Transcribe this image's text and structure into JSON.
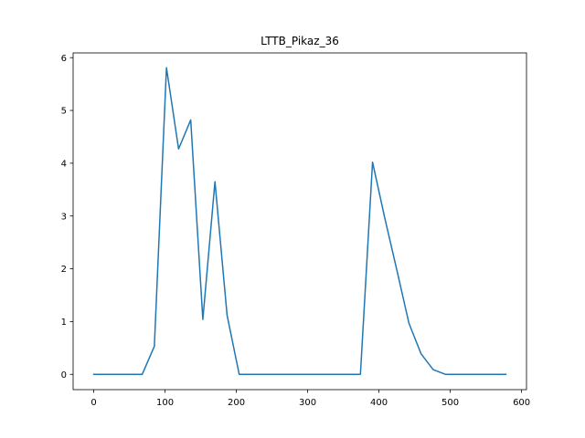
{
  "chart_data": {
    "type": "line",
    "title": "LTTB_Pikaz_36",
    "xlabel": "",
    "ylabel": "",
    "xlim": [
      -28.9,
      606.9
    ],
    "ylim": [
      -0.29,
      6.09
    ],
    "xticks": [
      0,
      100,
      200,
      300,
      400,
      500,
      600
    ],
    "yticks": [
      0,
      1,
      2,
      3,
      4,
      5,
      6
    ],
    "grid": false,
    "series": [
      {
        "color": "#1f77b4",
        "x": [
          0,
          68,
          85,
          102,
          119,
          136,
          153,
          170,
          187,
          204,
          221,
          238,
          255,
          272,
          289,
          306,
          323,
          340,
          357,
          374,
          391,
          408,
          425,
          442,
          459,
          476,
          493,
          510,
          527,
          544,
          561,
          578
        ],
        "y": [
          0,
          0,
          0.53,
          5.81,
          4.27,
          4.82,
          1.04,
          3.65,
          1.12,
          0,
          0,
          0,
          0,
          0,
          0,
          0,
          0,
          0,
          0,
          0,
          4.02,
          2.97,
          1.98,
          0.97,
          0.39,
          0.09,
          0,
          0,
          0,
          0,
          0,
          0
        ]
      }
    ]
  }
}
